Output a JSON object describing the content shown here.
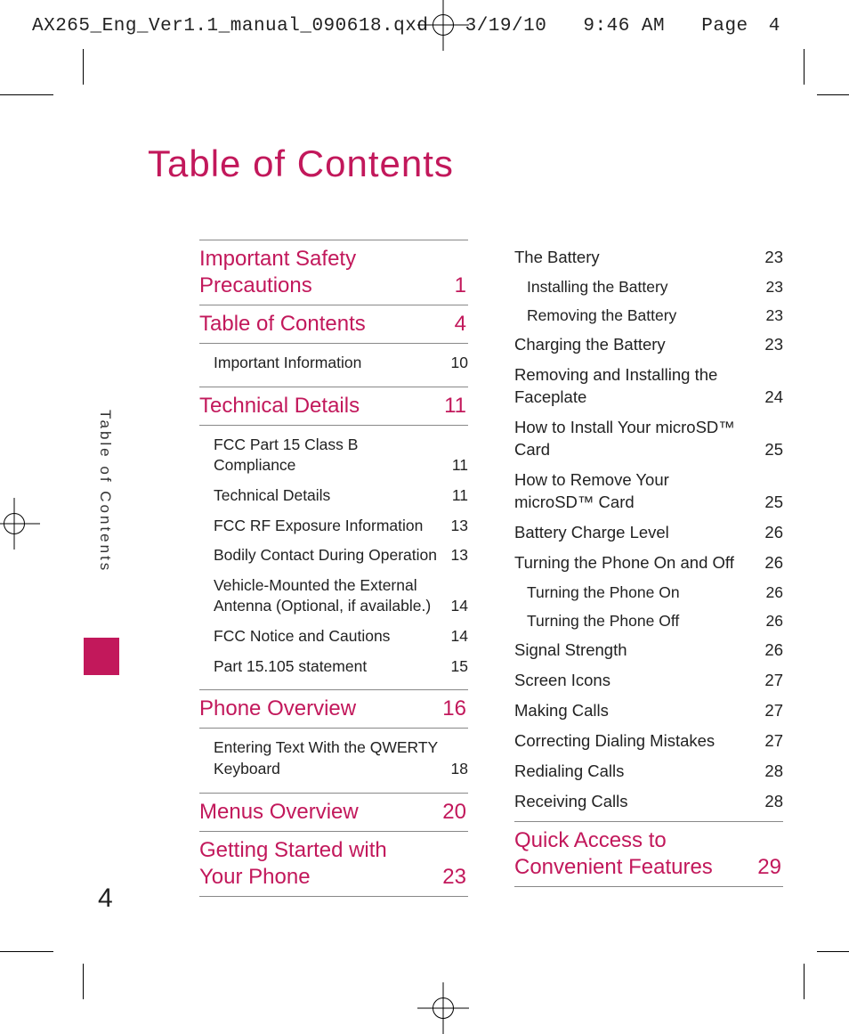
{
  "header": {
    "filename": "AX265_Eng_Ver1.1_manual_090618.qxd",
    "date": "3/19/10",
    "time": "9:46 AM",
    "page_label": "Page",
    "page_number": "4"
  },
  "accent_color": "#c2185b",
  "sidebar": {
    "label": "Table of Contents",
    "bar_color": "#c2185b",
    "page_number": "4"
  },
  "title": "Table of Contents",
  "left_column": [
    {
      "type": "section",
      "label": "Important Safety Precautions",
      "page": "1"
    },
    {
      "type": "section",
      "label": "Table of Contents",
      "page": "4"
    },
    {
      "type": "sub_indented",
      "label": "Important Information",
      "page": "10"
    },
    {
      "type": "section",
      "label": "Technical Details",
      "page": "11"
    },
    {
      "type": "sub_indented",
      "label": "FCC Part 15 Class B Compliance",
      "page": "11"
    },
    {
      "type": "sub_indented",
      "label": "Technical Details",
      "page": "11"
    },
    {
      "type": "sub_indented",
      "label": "FCC RF Exposure Information",
      "page": "13"
    },
    {
      "type": "sub_indented",
      "label": "Bodily Contact During Operation",
      "page": "13"
    },
    {
      "type": "sub_indented",
      "label": "Vehicle-Mounted the External Antenna (Optional, if available.)",
      "page": "14"
    },
    {
      "type": "sub_indented",
      "label": "FCC Notice and Cautions",
      "page": "14"
    },
    {
      "type": "sub_indented",
      "label": "Part 15.105 statement",
      "page": "15"
    },
    {
      "type": "section",
      "label": "Phone Overview",
      "page": "16"
    },
    {
      "type": "sub_indented_single",
      "label": "Entering Text With the QWERTY Keyboard",
      "page": "18"
    },
    {
      "type": "section",
      "label": "Menus Overview",
      "page": "20"
    },
    {
      "type": "section",
      "label": "Getting Started with Your Phone",
      "page": "23"
    }
  ],
  "right_column": [
    {
      "type": "entry",
      "label": "The Battery",
      "page": "23"
    },
    {
      "type": "subentry",
      "label": "Installing the Battery",
      "page": "23"
    },
    {
      "type": "subentry",
      "label": "Removing the Battery",
      "page": "23"
    },
    {
      "type": "entry",
      "label": "Charging the Battery",
      "page": "23"
    },
    {
      "type": "entry",
      "label": "Removing and Installing the Faceplate",
      "page": "24"
    },
    {
      "type": "entry",
      "label": "How to Install Your microSD™ Card",
      "page": "25"
    },
    {
      "type": "entry",
      "label": "How to Remove Your microSD™ Card",
      "page": "25"
    },
    {
      "type": "entry",
      "label": "Battery Charge Level",
      "page": "26"
    },
    {
      "type": "entry",
      "label": "Turning the Phone On and Off",
      "page": "26"
    },
    {
      "type": "subentry",
      "label": "Turning the Phone On",
      "page": "26"
    },
    {
      "type": "subentry",
      "label": "Turning the Phone Off",
      "page": "26"
    },
    {
      "type": "entry",
      "label": "Signal Strength",
      "page": "26"
    },
    {
      "type": "entry",
      "label": "Screen Icons",
      "page": "27"
    },
    {
      "type": "entry",
      "label": "Making Calls",
      "page": "27"
    },
    {
      "type": "entry",
      "label": "Correcting Dialing Mistakes",
      "page": "27"
    },
    {
      "type": "entry",
      "label": "Redialing Calls",
      "page": "28"
    },
    {
      "type": "entry",
      "label": "Receiving Calls",
      "page": "28"
    },
    {
      "type": "section",
      "label": "Quick Access to Convenient Features",
      "page": "29"
    }
  ]
}
